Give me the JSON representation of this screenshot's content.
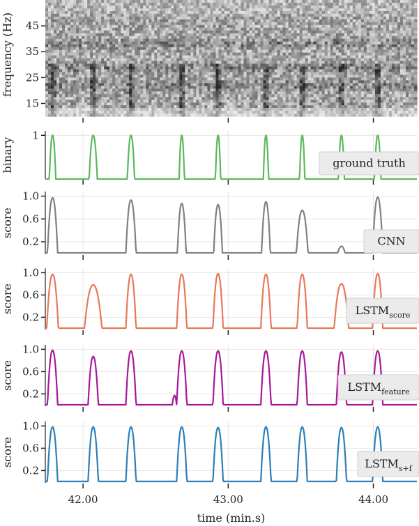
{
  "chart_data": {
    "type": "line",
    "xlabel": "time (min.s)",
    "xlim": [
      41.74,
      44.3
    ],
    "xticks": [
      42.0,
      43.0,
      44.0
    ],
    "xtick_labels": [
      "42.00",
      "43.00",
      "44.00"
    ],
    "spectrogram": {
      "ylabel": "frequency (Hz)",
      "ylim": [
        10,
        55
      ],
      "yticks": [
        15,
        25,
        35,
        45
      ],
      "ytick_labels": [
        "15",
        "25",
        "35",
        "45"
      ],
      "peak_times": [
        41.79,
        42.07,
        42.33,
        42.68,
        42.93,
        43.26,
        43.51,
        43.78,
        44.03
      ],
      "bands_hz": [
        29,
        38,
        22
      ]
    },
    "panels": [
      {
        "name": "ground truth",
        "ylabel": "binary",
        "ylim": [
          0,
          1.1
        ],
        "yticks": [
          1
        ],
        "ytick_labels": [
          "1"
        ],
        "color": "#5cb85c",
        "legend": {
          "main": "ground truth",
          "sub": ""
        },
        "events": [
          {
            "t": 41.79,
            "h": 1.0,
            "w": 0.022
          },
          {
            "t": 42.07,
            "h": 1.0,
            "w": 0.028
          },
          {
            "t": 42.33,
            "h": 1.0,
            "w": 0.025
          },
          {
            "t": 42.68,
            "h": 1.0,
            "w": 0.018
          },
          {
            "t": 42.93,
            "h": 1.0,
            "w": 0.018
          },
          {
            "t": 43.26,
            "h": 1.0,
            "w": 0.018
          },
          {
            "t": 43.51,
            "h": 1.0,
            "w": 0.018
          },
          {
            "t": 43.78,
            "h": 1.0,
            "w": 0.02
          },
          {
            "t": 44.03,
            "h": 1.0,
            "w": 0.022
          }
        ]
      },
      {
        "name": "CNN",
        "ylabel": "score",
        "ylim": [
          -0.02,
          1.08
        ],
        "yticks": [
          0.2,
          0.6,
          1.0
        ],
        "ytick_labels": [
          "0.2",
          "0.6",
          "1.0"
        ],
        "color": "#808080",
        "legend": {
          "main": "CNN",
          "sub": ""
        },
        "events": [
          {
            "t": 41.79,
            "h": 0.97,
            "w": 0.035
          },
          {
            "t": 42.33,
            "h": 0.93,
            "w": 0.035
          },
          {
            "t": 42.68,
            "h": 0.87,
            "w": 0.03
          },
          {
            "t": 42.93,
            "h": 0.85,
            "w": 0.03
          },
          {
            "t": 43.26,
            "h": 0.9,
            "w": 0.03
          },
          {
            "t": 43.51,
            "h": 0.75,
            "w": 0.04
          },
          {
            "t": 43.78,
            "h": 0.12,
            "w": 0.025
          },
          {
            "t": 44.03,
            "h": 0.98,
            "w": 0.035
          }
        ]
      },
      {
        "name": "LSTM_score",
        "ylabel": "score",
        "ylim": [
          -0.02,
          1.08
        ],
        "yticks": [
          0.2,
          0.6,
          1.0
        ],
        "ytick_labels": [
          "0.2",
          "0.6",
          "1.0"
        ],
        "color": "#e8785a",
        "legend": {
          "main": "LSTM",
          "sub": "score"
        },
        "events": [
          {
            "t": 41.79,
            "h": 0.97,
            "w": 0.04
          },
          {
            "t": 42.07,
            "h": 0.78,
            "w": 0.06
          },
          {
            "t": 42.33,
            "h": 0.97,
            "w": 0.035
          },
          {
            "t": 42.68,
            "h": 0.97,
            "w": 0.035
          },
          {
            "t": 42.93,
            "h": 0.98,
            "w": 0.035
          },
          {
            "t": 43.26,
            "h": 0.97,
            "w": 0.035
          },
          {
            "t": 43.51,
            "h": 0.97,
            "w": 0.035
          },
          {
            "t": 43.78,
            "h": 0.8,
            "w": 0.05
          },
          {
            "t": 44.03,
            "h": 0.98,
            "w": 0.035
          }
        ]
      },
      {
        "name": "LSTM_feature",
        "ylabel": "score",
        "ylim": [
          -0.02,
          1.08
        ],
        "yticks": [
          0.2,
          0.6,
          1.0
        ],
        "ytick_labels": [
          "0.2",
          "0.6",
          "1.0"
        ],
        "color": "#a8189a",
        "legend": {
          "main": "LSTM",
          "sub": "feature"
        },
        "events": [
          {
            "t": 41.79,
            "h": 0.98,
            "w": 0.035
          },
          {
            "t": 42.07,
            "h": 0.87,
            "w": 0.035
          },
          {
            "t": 42.33,
            "h": 0.97,
            "w": 0.035
          },
          {
            "t": 42.63,
            "h": 0.17,
            "w": 0.015
          },
          {
            "t": 42.68,
            "h": 0.97,
            "w": 0.035
          },
          {
            "t": 42.93,
            "h": 0.97,
            "w": 0.035
          },
          {
            "t": 43.26,
            "h": 0.97,
            "w": 0.035
          },
          {
            "t": 43.51,
            "h": 0.97,
            "w": 0.035
          },
          {
            "t": 43.78,
            "h": 0.95,
            "w": 0.035
          },
          {
            "t": 44.03,
            "h": 0.97,
            "w": 0.035
          }
        ]
      },
      {
        "name": "LSTM_s+f",
        "ylabel": "score",
        "ylim": [
          -0.02,
          1.08
        ],
        "yticks": [
          0.2,
          0.6,
          1.0
        ],
        "ytick_labels": [
          "0.2",
          "0.6",
          "1.0"
        ],
        "color": "#2e7eb8",
        "legend": {
          "main": "LSTM",
          "sub": "s+f"
        },
        "events": [
          {
            "t": 41.79,
            "h": 0.98,
            "w": 0.035
          },
          {
            "t": 42.07,
            "h": 0.98,
            "w": 0.035
          },
          {
            "t": 42.33,
            "h": 0.98,
            "w": 0.035
          },
          {
            "t": 42.68,
            "h": 0.98,
            "w": 0.035
          },
          {
            "t": 42.93,
            "h": 0.97,
            "w": 0.035
          },
          {
            "t": 43.26,
            "h": 0.98,
            "w": 0.035
          },
          {
            "t": 43.51,
            "h": 0.98,
            "w": 0.035
          },
          {
            "t": 43.78,
            "h": 0.97,
            "w": 0.035
          },
          {
            "t": 44.03,
            "h": 0.98,
            "w": 0.035
          }
        ]
      }
    ]
  }
}
